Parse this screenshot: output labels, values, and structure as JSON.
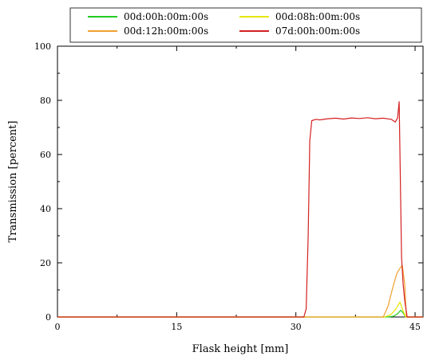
{
  "chart_data": {
    "type": "line",
    "title": "",
    "xlabel": "Flask height [mm]",
    "ylabel": "Transmission [percent]",
    "xlim": [
      0,
      46
    ],
    "ylim": [
      0,
      100
    ],
    "x_ticks": [
      0,
      15,
      30,
      45
    ],
    "y_ticks": [
      0,
      20,
      40,
      60,
      80,
      100
    ],
    "grid": false,
    "legend_position": "top",
    "series": [
      {
        "name": "00d:00h:00m:00s",
        "color": "#22cc22",
        "x": [
          0,
          41.5,
          42.3,
          42.8,
          43.2,
          43.5,
          43.8,
          46
        ],
        "y": [
          0,
          0,
          0.3,
          1.2,
          2.5,
          1.5,
          0,
          0
        ]
      },
      {
        "name": "00d:08h:00m:00s",
        "color": "#e6e600",
        "x": [
          0,
          41.2,
          42.0,
          42.6,
          43.1,
          43.4,
          43.8,
          46
        ],
        "y": [
          0,
          0,
          1.0,
          3.0,
          5.5,
          3.0,
          0,
          0
        ]
      },
      {
        "name": "00d:12h:00m:00s",
        "color": "#f0a030",
        "x": [
          0,
          41.0,
          41.6,
          42.2,
          42.7,
          43.1,
          43.4,
          43.7,
          43.9,
          46
        ],
        "y": [
          0,
          0,
          4,
          11,
          16,
          18,
          19,
          12,
          0,
          0
        ]
      },
      {
        "name": "07d:00h:00m:00s",
        "color": "#d42020",
        "x": [
          0,
          31.0,
          31.3,
          31.55,
          31.75,
          32.0,
          32.5,
          33.0,
          34,
          35,
          36,
          37,
          38,
          39,
          40,
          41,
          42.0,
          42.5,
          42.8,
          43.0,
          43.1,
          43.3,
          43.5,
          43.7,
          44.0,
          46
        ],
        "y": [
          0,
          0,
          3,
          30,
          65,
          72.5,
          73,
          72.8,
          73.2,
          73.4,
          73.1,
          73.5,
          73.3,
          73.6,
          73.2,
          73.4,
          73.0,
          72.0,
          73.5,
          79.5,
          60,
          22,
          12,
          6,
          0,
          0
        ]
      }
    ]
  }
}
